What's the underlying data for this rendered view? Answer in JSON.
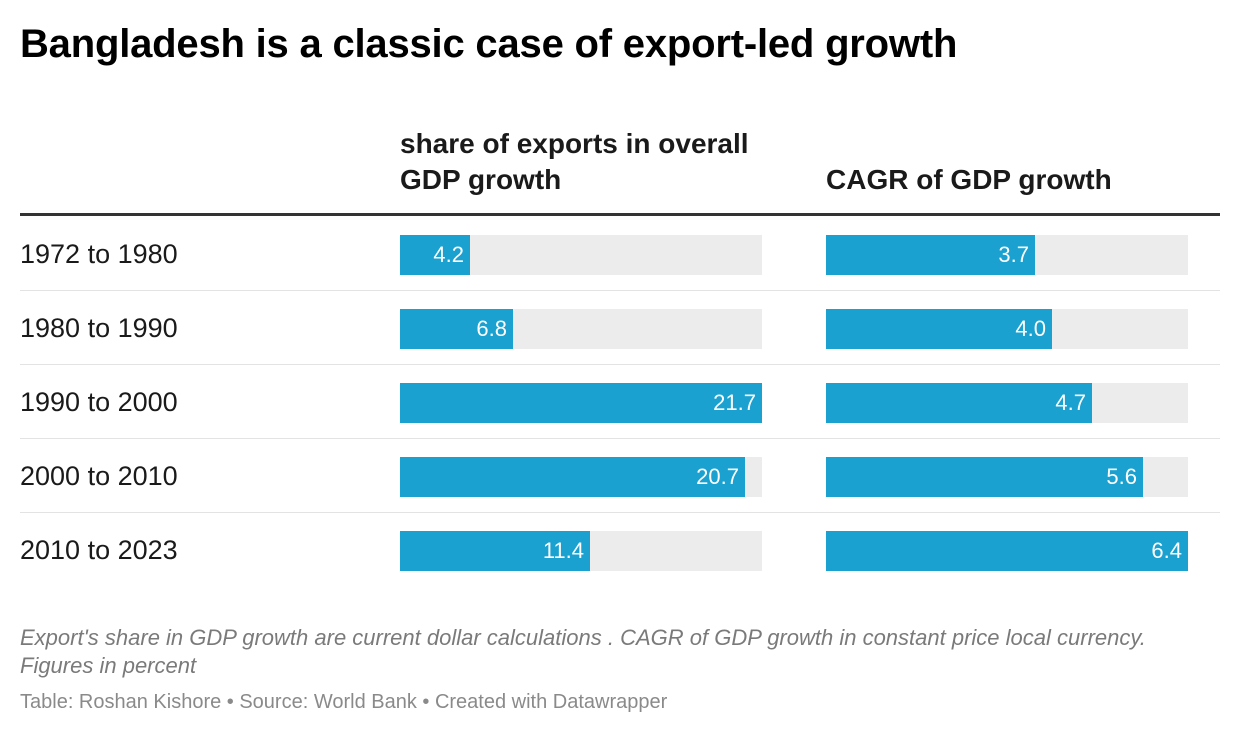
{
  "title": "Bangladesh is a classic case of export-led growth",
  "columns": [
    {
      "header": "share of exports in overall GDP growth",
      "max": 21.7
    },
    {
      "header": "CAGR of GDP growth",
      "max": 6.4
    }
  ],
  "rows": [
    {
      "label": "1972 to 1980",
      "values": [
        "4.2",
        "3.7"
      ]
    },
    {
      "label": "1980 to 1990",
      "values": [
        "6.8",
        "4.0"
      ]
    },
    {
      "label": "1990 to 2000",
      "values": [
        "21.7",
        "4.7"
      ]
    },
    {
      "label": "2000 to 2010",
      "values": [
        "20.7",
        "5.6"
      ]
    },
    {
      "label": "2010 to 2023",
      "values": [
        "11.4",
        "6.4"
      ]
    }
  ],
  "notes": "Export's share in GDP growth are current dollar calculations . CAGR of GDP growth in constant price local currency. Figures in percent",
  "footer": "Table: Roshan Kishore • Source: World Bank • Created with Datawrapper",
  "colors": {
    "bar": "#1aa1d0",
    "track": "#ececec",
    "value_text": "#ffffff"
  },
  "chart_data": {
    "type": "table",
    "categories": [
      "1972 to 1980",
      "1980 to 1990",
      "1990 to 2000",
      "2000 to 2010",
      "2010 to 2023"
    ],
    "series": [
      {
        "name": "share of exports in overall GDP growth",
        "values": [
          4.2,
          6.8,
          21.7,
          20.7,
          11.4
        ]
      },
      {
        "name": "CAGR of GDP growth",
        "values": [
          3.7,
          4.0,
          4.7,
          5.6,
          6.4
        ]
      }
    ],
    "title": "Bangladesh is a classic case of export-led growth"
  }
}
